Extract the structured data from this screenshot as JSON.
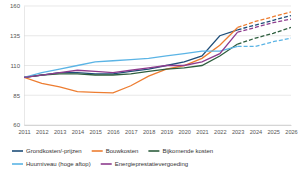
{
  "chart_data": {
    "type": "line",
    "categories": [
      "2011",
      "2012",
      "2013",
      "2014",
      "2015",
      "2016",
      "2017",
      "2018",
      "2019",
      "2020",
      "2021",
      "2022",
      "2023",
      "2024",
      "2025",
      "2026"
    ],
    "ylim": [
      60,
      160
    ],
    "yticks": [
      60,
      85,
      110,
      135,
      160
    ],
    "grid": true,
    "legend": "bottom",
    "series": [
      {
        "name": "Grondkosten/-prijzen",
        "color": "#1f4e79",
        "line_style": "solid",
        "values": [
          100,
          102,
          104,
          104,
          103,
          103,
          105,
          107,
          110,
          113,
          118,
          135,
          140,
          null,
          null,
          null
        ]
      },
      {
        "name": "Bouwkosten",
        "color": "#ed7d31",
        "line_style": "solid",
        "values": [
          100,
          95,
          92,
          88,
          87.5,
          87,
          93,
          101,
          107,
          110,
          116,
          127,
          142,
          null,
          null,
          null
        ]
      },
      {
        "name": "Bijkomende kosten",
        "color": "#2e5e3e",
        "line_style": "solid",
        "values": [
          100,
          102,
          103,
          103,
          102,
          102,
          103,
          105,
          107,
          108,
          110,
          118,
          128,
          null,
          null,
          null
        ]
      },
      {
        "name": "Huurniveau (hoge aftop)",
        "color": "#5bb4e5",
        "line_style": "solid",
        "values": [
          100,
          104,
          107,
          110,
          113,
          114,
          115,
          116,
          118,
          120,
          122,
          122,
          126,
          null,
          null,
          null
        ]
      },
      {
        "name": "Energieprestatievergoeding",
        "color": "#8e3c8e",
        "line_style": "solid",
        "values": [
          100,
          102,
          104,
          106,
          105,
          104,
          106,
          108,
          110,
          110,
          113,
          120,
          138,
          null,
          null,
          null
        ]
      },
      {
        "color": "#1f4e79",
        "line_style": "dashed",
        "values": [
          null,
          null,
          null,
          null,
          null,
          null,
          null,
          null,
          null,
          null,
          null,
          null,
          140,
          144,
          148,
          152
        ]
      },
      {
        "color": "#ed7d31",
        "line_style": "dashed",
        "values": [
          null,
          null,
          null,
          null,
          null,
          null,
          null,
          null,
          null,
          null,
          null,
          null,
          142,
          147,
          151,
          155
        ]
      },
      {
        "color": "#2e5e3e",
        "line_style": "dashed",
        "values": [
          null,
          null,
          null,
          null,
          null,
          null,
          null,
          null,
          null,
          null,
          null,
          null,
          128,
          133,
          137,
          142
        ]
      },
      {
        "color": "#5bb4e5",
        "line_style": "dashed",
        "values": [
          null,
          null,
          null,
          null,
          null,
          null,
          null,
          null,
          null,
          null,
          null,
          null,
          126,
          126,
          130,
          133
        ]
      },
      {
        "color": "#8e3c8e",
        "line_style": "dashed",
        "values": [
          null,
          null,
          null,
          null,
          null,
          null,
          null,
          null,
          null,
          null,
          null,
          null,
          138,
          142,
          146,
          149
        ]
      }
    ]
  }
}
